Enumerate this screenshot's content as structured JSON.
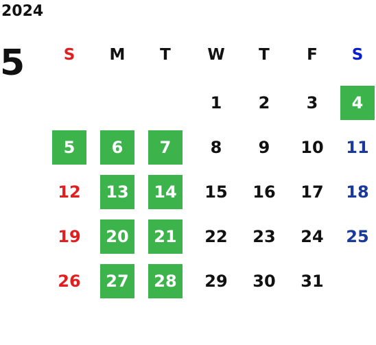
{
  "year": "2024",
  "month": "5",
  "weekdays": [
    "S",
    "M",
    "T",
    "W",
    "T",
    "F",
    "S"
  ],
  "days": [
    {
      "day": 1
    },
    {
      "day": 2
    },
    {
      "day": 3
    },
    {
      "day": 4,
      "highlight": true
    },
    {
      "day": 5,
      "highlight": true
    },
    {
      "day": 6,
      "highlight": true
    },
    {
      "day": 7,
      "highlight": true
    },
    {
      "day": 8
    },
    {
      "day": 9
    },
    {
      "day": 10
    },
    {
      "day": 11
    },
    {
      "day": 12
    },
    {
      "day": 13,
      "highlight": true
    },
    {
      "day": 14,
      "highlight": true
    },
    {
      "day": 15
    },
    {
      "day": 16
    },
    {
      "day": 17
    },
    {
      "day": 18
    },
    {
      "day": 19
    },
    {
      "day": 20,
      "highlight": true
    },
    {
      "day": 21,
      "highlight": true
    },
    {
      "day": 22
    },
    {
      "day": 23
    },
    {
      "day": 24
    },
    {
      "day": 25
    },
    {
      "day": 26
    },
    {
      "day": 27,
      "highlight": true
    },
    {
      "day": 28,
      "highlight": true
    },
    {
      "day": 29
    },
    {
      "day": 30
    },
    {
      "day": 31
    }
  ]
}
